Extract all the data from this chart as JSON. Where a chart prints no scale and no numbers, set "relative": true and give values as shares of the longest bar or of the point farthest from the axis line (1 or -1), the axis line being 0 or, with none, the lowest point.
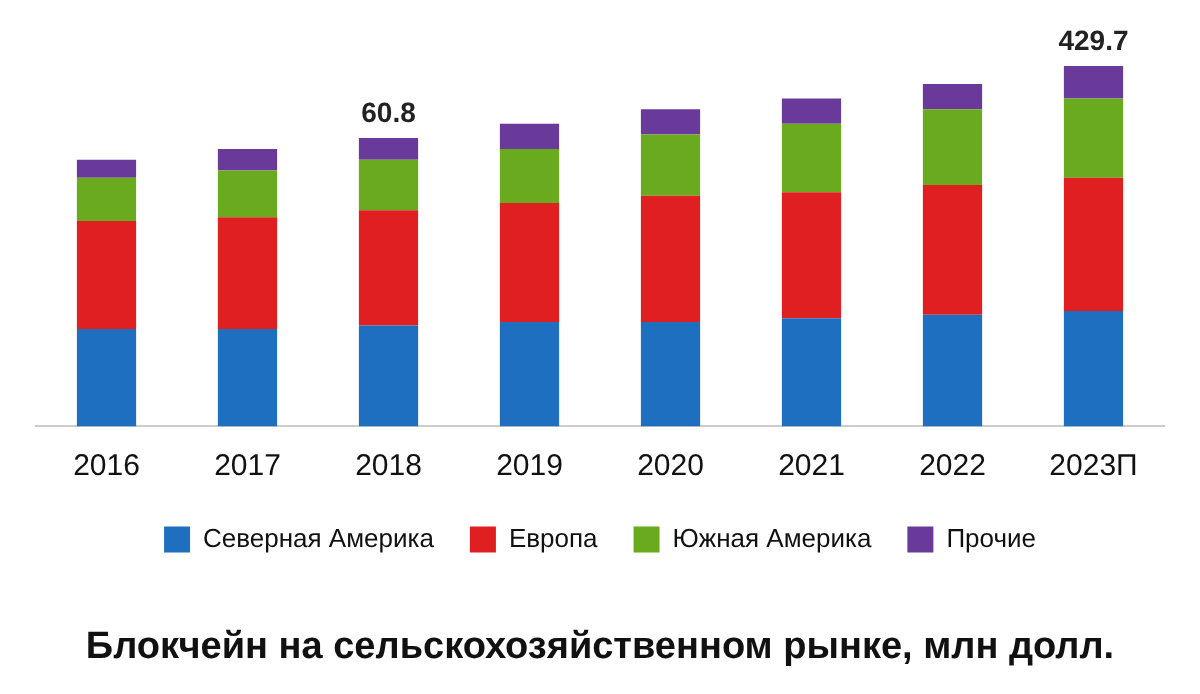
{
  "chart_data": {
    "type": "bar",
    "title": "Блокчейн на сельскохозяйственном рынке, млн долл.",
    "categories": [
      "2016",
      "2017",
      "2018",
      "2019",
      "2020",
      "2021",
      "2022",
      "2023П"
    ],
    "stacked": true,
    "relative": true,
    "legend": "bottom",
    "grid": false,
    "series": [
      {
        "name": "Северная Америка",
        "color": "#1f6fc0",
        "values": [
          0.27,
          0.27,
          0.28,
          0.29,
          0.29,
          0.3,
          0.31,
          0.32
        ]
      },
      {
        "name": "Европа",
        "color": "#e02020",
        "values": [
          0.3,
          0.31,
          0.32,
          0.33,
          0.35,
          0.35,
          0.36,
          0.37
        ]
      },
      {
        "name": "Южная Америка",
        "color": "#6aaa1e",
        "values": [
          0.12,
          0.13,
          0.14,
          0.15,
          0.17,
          0.19,
          0.21,
          0.22
        ]
      },
      {
        "name": "Прочие",
        "color": "#6a3a9a",
        "values": [
          0.05,
          0.06,
          0.06,
          0.07,
          0.07,
          0.07,
          0.07,
          0.09
        ]
      }
    ],
    "annotations": [
      {
        "text": "60.8",
        "x": "2018",
        "y": 0.8
      },
      {
        "text": "429.7",
        "x": "2023П",
        "y": 1
      }
    ]
  }
}
